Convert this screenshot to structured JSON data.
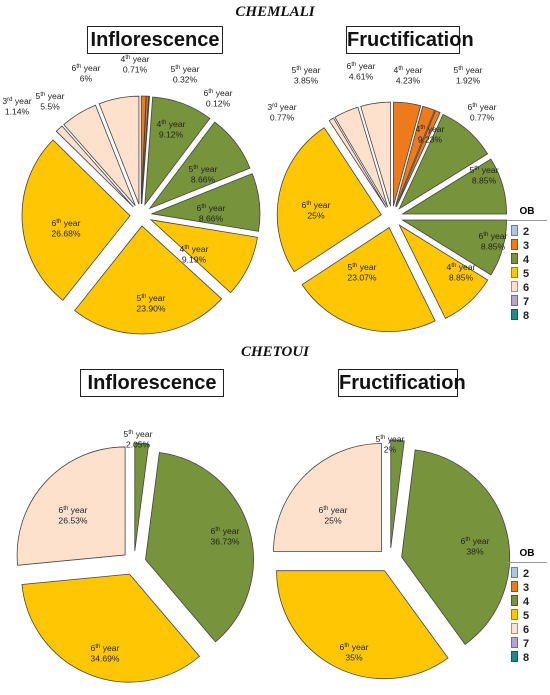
{
  "sections": [
    {
      "variety": "CHEMLALI"
    },
    {
      "variety": "CHETOUI"
    }
  ],
  "colors": {
    "2": "#a9c6e4",
    "3": "#ef7a1c",
    "4": "#77933c",
    "5": "#ffc703",
    "6": "#fde1cd",
    "7": "#b4a4d1",
    "8": "#1f8a87"
  },
  "legend": {
    "title": "OB",
    "items": [
      "2",
      "3",
      "4",
      "5",
      "6",
      "7",
      "8"
    ]
  },
  "chart_data": [
    {
      "type": "pie",
      "title": "Inflorescence",
      "variety": "CHEMLALI",
      "slices": [
        {
          "year": "4",
          "label": "4th year",
          "value": 0.71,
          "value_label": "0.71%",
          "ob": "3"
        },
        {
          "year": "5",
          "label": "5th year",
          "value": 0.32,
          "value_label": "0.32%",
          "ob": "3"
        },
        {
          "year": "6",
          "label": "6th year",
          "value": 0.12,
          "value_label": "0.12%",
          "ob": "3"
        },
        {
          "year": "4",
          "label": "4th year",
          "value": 9.12,
          "value_label": "9.12%",
          "ob": "4"
        },
        {
          "year": "5",
          "label": "5th year",
          "value": 8.66,
          "value_label": "8.66%",
          "ob": "4"
        },
        {
          "year": "6",
          "label": "6th year",
          "value": 8.66,
          "value_label": "8.66%",
          "ob": "4"
        },
        {
          "year": "4",
          "label": "4th year",
          "value": 9.19,
          "value_label": "9.19%",
          "ob": "5"
        },
        {
          "year": "5",
          "label": "5th year",
          "value": 23.9,
          "value_label": "23.90%",
          "ob": "5"
        },
        {
          "year": "6",
          "label": "6th year",
          "value": 26.68,
          "value_label": "26.68%",
          "ob": "5"
        },
        {
          "year": "3",
          "label": "3rd year",
          "value": 1.14,
          "value_label": "1.14%",
          "ob": "6"
        },
        {
          "year": "5",
          "label": "5th year",
          "value": 5.5,
          "value_label": "5.5%",
          "ob": "6"
        },
        {
          "year": "6",
          "label": "6th year",
          "value": 6,
          "value_label": "6%",
          "ob": "6"
        }
      ]
    },
    {
      "type": "pie",
      "title": "Fructification",
      "variety": "CHEMLALI",
      "slices": [
        {
          "year": "4",
          "label": "4th year",
          "value": 4.23,
          "value_label": "4.23%",
          "ob": "3"
        },
        {
          "year": "5",
          "label": "5th year",
          "value": 1.92,
          "value_label": "1.92%",
          "ob": "3"
        },
        {
          "year": "6",
          "label": "6th year",
          "value": 0.77,
          "value_label": "0.77%",
          "ob": "3"
        },
        {
          "year": "4",
          "label": "4th year",
          "value": 9.23,
          "value_label": "9.23%",
          "ob": "4"
        },
        {
          "year": "5",
          "label": "5th year",
          "value": 8.85,
          "value_label": "8.85%",
          "ob": "4"
        },
        {
          "year": "6",
          "label": "6th year",
          "value": 8.85,
          "value_label": "8.85%",
          "ob": "4"
        },
        {
          "year": "4",
          "label": "4th year",
          "value": 8.85,
          "value_label": "8.85%",
          "ob": "5"
        },
        {
          "year": "5",
          "label": "5th year",
          "value": 23.07,
          "value_label": "23.07%",
          "ob": "5"
        },
        {
          "year": "6",
          "label": "6th year",
          "value": 25,
          "value_label": "25%",
          "ob": "5"
        },
        {
          "year": "3",
          "label": "3rd year",
          "value": 0.77,
          "value_label": "0.77%",
          "ob": "6"
        },
        {
          "year": "5",
          "label": "5th year",
          "value": 3.85,
          "value_label": "3.85%",
          "ob": "6"
        },
        {
          "year": "6",
          "label": "6th year",
          "value": 4.61,
          "value_label": "4.61%",
          "ob": "6"
        }
      ]
    },
    {
      "type": "pie",
      "title": "Inflorescence",
      "variety": "CHETOUI",
      "slices": [
        {
          "year": "5",
          "label": "5th year",
          "value": 2.05,
          "value_label": "2.05%",
          "ob": "4"
        },
        {
          "year": "6",
          "label": "6th year",
          "value": 36.73,
          "value_label": "36.73%",
          "ob": "4"
        },
        {
          "year": "6",
          "label": "6th year",
          "value": 34.69,
          "value_label": "34.69%",
          "ob": "5"
        },
        {
          "year": "6",
          "label": "6th year",
          "value": 26.53,
          "value_label": "26.53%",
          "ob": "6"
        }
      ]
    },
    {
      "type": "pie",
      "title": "Fructification",
      "variety": "CHETOUI",
      "slices": [
        {
          "year": "5",
          "label": "5th year",
          "value": 2,
          "value_label": "2%",
          "ob": "4"
        },
        {
          "year": "6",
          "label": "6th year",
          "value": 38,
          "value_label": "38%",
          "ob": "4"
        },
        {
          "year": "6",
          "label": "6th year",
          "value": 35,
          "value_label": "35%",
          "ob": "5"
        },
        {
          "year": "6",
          "label": "6th year",
          "value": 25,
          "value_label": "25%",
          "ob": "6"
        }
      ]
    }
  ]
}
